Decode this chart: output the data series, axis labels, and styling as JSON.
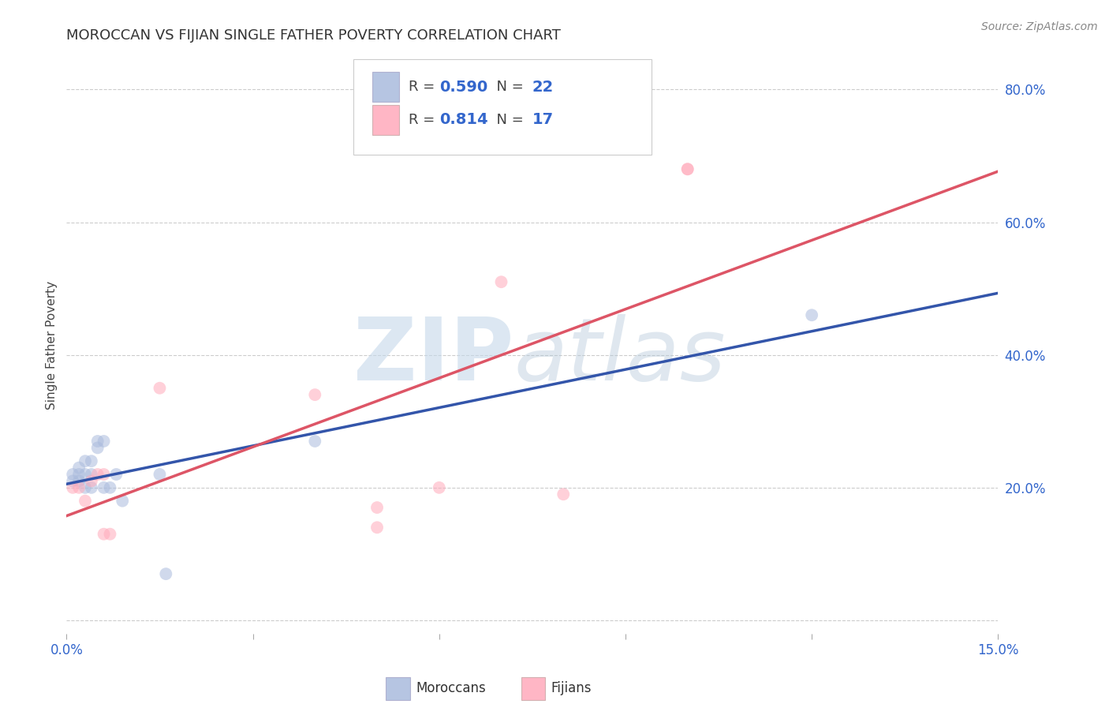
{
  "title": "MOROCCAN VS FIJIAN SINGLE FATHER POVERTY CORRELATION CHART",
  "source": "Source: ZipAtlas.com",
  "ylabel": "Single Father Poverty",
  "xlim": [
    0.0,
    0.15
  ],
  "ylim": [
    -0.02,
    0.85
  ],
  "yticks": [
    0.0,
    0.2,
    0.4,
    0.6,
    0.8
  ],
  "xticks": [
    0.0,
    0.03,
    0.06,
    0.09,
    0.12,
    0.15
  ],
  "grid_color": "#cccccc",
  "background_color": "#ffffff",
  "moroccans_x": [
    0.001,
    0.001,
    0.002,
    0.002,
    0.002,
    0.003,
    0.003,
    0.003,
    0.004,
    0.004,
    0.004,
    0.005,
    0.005,
    0.006,
    0.006,
    0.007,
    0.008,
    0.009,
    0.015,
    0.016,
    0.04,
    0.12
  ],
  "moroccans_y": [
    0.22,
    0.21,
    0.23,
    0.22,
    0.21,
    0.24,
    0.22,
    0.2,
    0.24,
    0.22,
    0.2,
    0.26,
    0.27,
    0.27,
    0.2,
    0.2,
    0.22,
    0.18,
    0.22,
    0.07,
    0.27,
    0.46
  ],
  "fijians_x": [
    0.001,
    0.002,
    0.003,
    0.004,
    0.005,
    0.006,
    0.006,
    0.007,
    0.015,
    0.04,
    0.05,
    0.05,
    0.06,
    0.07,
    0.08,
    0.1,
    0.1
  ],
  "fijians_y": [
    0.2,
    0.2,
    0.18,
    0.21,
    0.22,
    0.22,
    0.13,
    0.13,
    0.35,
    0.34,
    0.17,
    0.14,
    0.2,
    0.51,
    0.19,
    0.68,
    0.68
  ],
  "moroccans_color": "#aabbdd",
  "fijians_color": "#ffaabb",
  "moroccans_line_color": "#3355aa",
  "fijians_line_color": "#dd5566",
  "moroccans_R": 0.59,
  "moroccans_N": 22,
  "fijians_R": 0.814,
  "fijians_N": 17,
  "marker_size": 130,
  "marker_alpha": 0.55,
  "line_width": 2.5,
  "tick_label_color": "#3366cc",
  "label_color": "#444444"
}
